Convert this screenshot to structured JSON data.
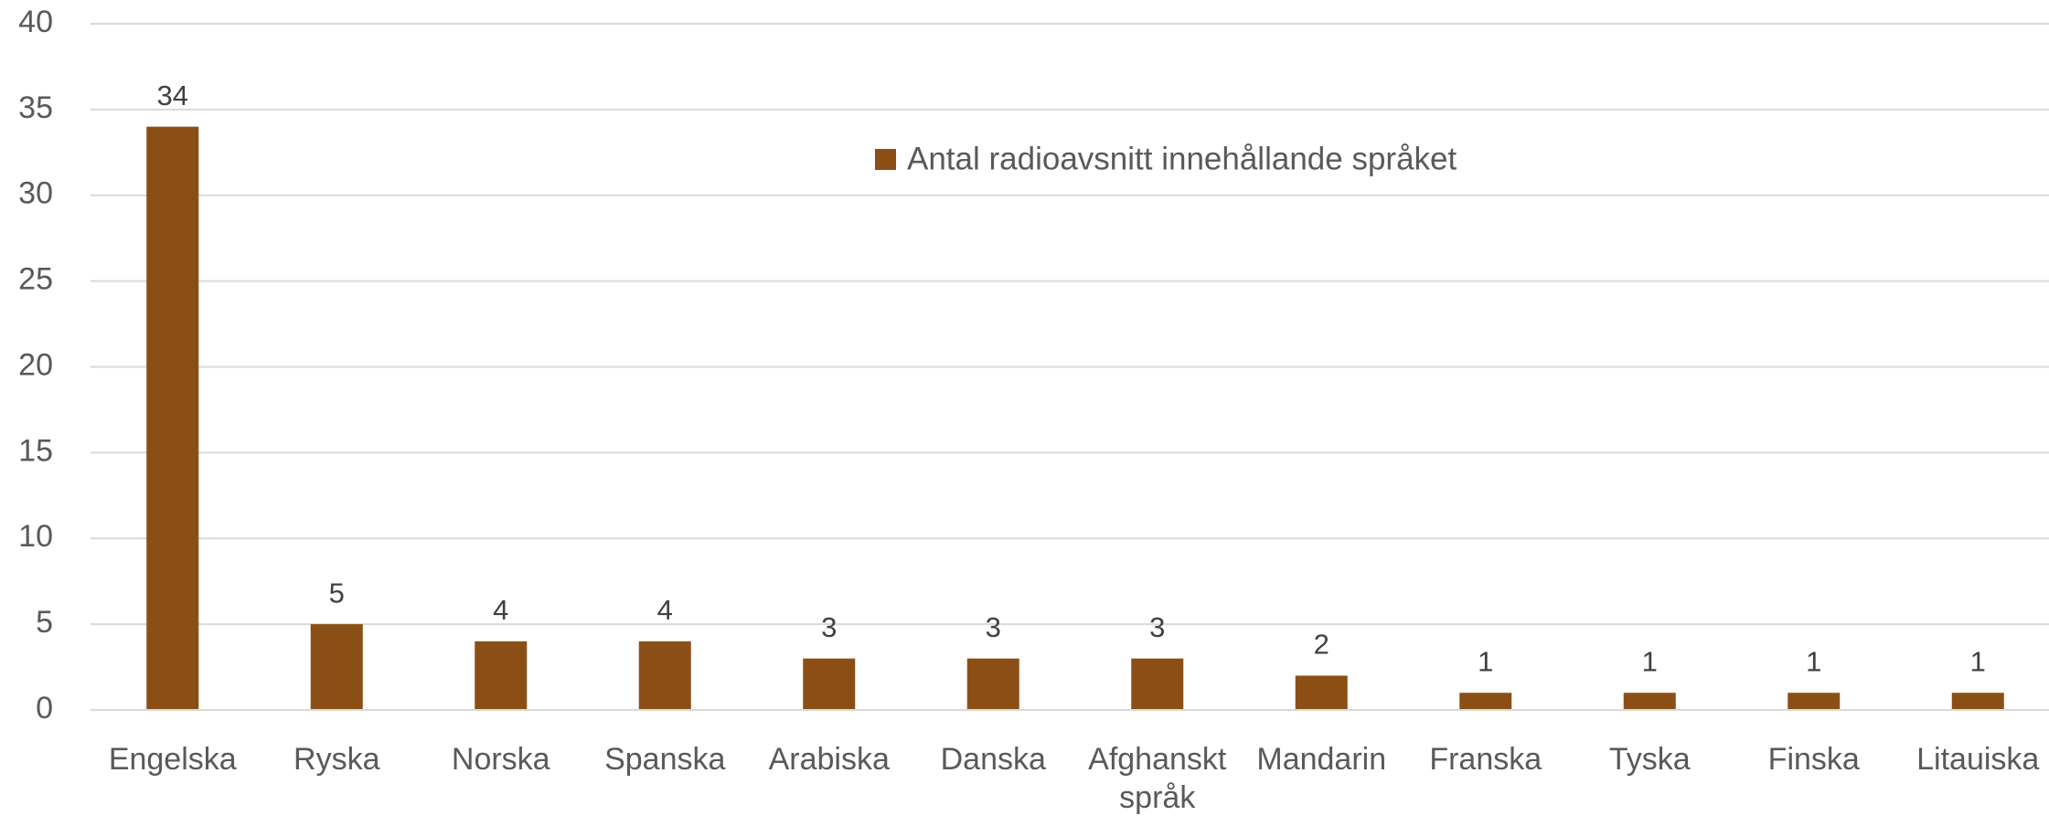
{
  "chart_data": {
    "type": "bar",
    "categories": [
      "Engelska",
      "Ryska",
      "Norska",
      "Spanska",
      "Arabiska",
      "Danska",
      "Afghanskt språk",
      "Mandarin",
      "Franska",
      "Tyska",
      "Finska",
      "Litauiska"
    ],
    "series": [
      {
        "name": "Antal radioavsnitt innehållande språket",
        "color": "#8b4f15",
        "values": [
          34,
          5,
          4,
          4,
          3,
          3,
          3,
          2,
          1,
          1,
          1,
          1
        ]
      }
    ],
    "ylim": [
      0,
      40
    ],
    "yticks": [
      0,
      5,
      10,
      15,
      20,
      25,
      30,
      35,
      40
    ],
    "grid": true,
    "data_labels": true,
    "legend": "top"
  }
}
